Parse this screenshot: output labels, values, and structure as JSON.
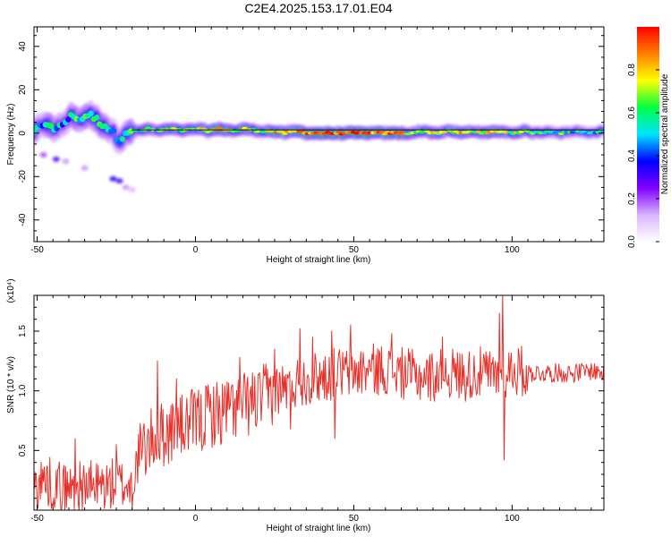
{
  "title": "C2E4.2025.153.17.01.E04",
  "chart_data": [
    {
      "type": "heatmap",
      "xlabel": "Height of straight line (km)",
      "ylabel": "Frequency (Hz)",
      "xlim": [
        -51,
        129
      ],
      "ylim": [
        -50,
        49
      ],
      "xticks": [
        "-50",
        "0",
        "50",
        "100"
      ],
      "yticks": [
        "40",
        "20",
        "0",
        "-20",
        "-40"
      ],
      "colorbar": {
        "label": "Normalized spectral amplitude",
        "range": [
          0,
          1
        ],
        "ticks": [
          "0.0",
          "0.2",
          "0.4",
          "0.6",
          "0.8"
        ],
        "colors": [
          "#ffffff",
          "#d9b3ff",
          "#8000ff",
          "#0000ff",
          "#00e5ff",
          "#00ff40",
          "#ffff00",
          "#ff8000",
          "#ff0000"
        ]
      },
      "reference_line_hz": 1.5,
      "ridge": [
        {
          "x": -50,
          "f": 4,
          "a": 0.35
        },
        {
          "x": -48,
          "f": 2,
          "a": 0.45
        },
        {
          "x": -46,
          "f": 5,
          "a": 0.55
        },
        {
          "x": -44,
          "f": 1,
          "a": 0.5
        },
        {
          "x": -42,
          "f": 4,
          "a": 0.45
        },
        {
          "x": -40,
          "f": 7,
          "a": 0.4
        },
        {
          "x": -38,
          "f": 8,
          "a": 0.6
        },
        {
          "x": -36,
          "f": 6,
          "a": 0.55
        },
        {
          "x": -34,
          "f": 9,
          "a": 0.5
        },
        {
          "x": -32,
          "f": 7,
          "a": 0.55
        },
        {
          "x": -30,
          "f": 5,
          "a": 0.6
        },
        {
          "x": -28,
          "f": 3,
          "a": 0.5
        },
        {
          "x": -26,
          "f": 0,
          "a": 0.45
        },
        {
          "x": -24,
          "f": -3,
          "a": 0.5
        },
        {
          "x": -22,
          "f": 1,
          "a": 0.55
        },
        {
          "x": -20,
          "f": 1,
          "a": 0.6
        },
        {
          "x": -18,
          "f": 1,
          "a": 0.6
        },
        {
          "x": -15,
          "f": 2,
          "a": 0.65
        },
        {
          "x": -12,
          "f": 1,
          "a": 0.6
        },
        {
          "x": -8,
          "f": 2,
          "a": 0.7
        },
        {
          "x": -4,
          "f": 1,
          "a": 0.75
        },
        {
          "x": 0,
          "f": 2,
          "a": 0.7
        },
        {
          "x": 4,
          "f": 1,
          "a": 0.75
        },
        {
          "x": 8,
          "f": 2,
          "a": 0.85
        },
        {
          "x": 12,
          "f": 1,
          "a": 0.7
        },
        {
          "x": 16,
          "f": 2,
          "a": 0.75
        },
        {
          "x": 20,
          "f": 1,
          "a": 0.7
        },
        {
          "x": 24,
          "f": 1,
          "a": 0.75
        },
        {
          "x": 28,
          "f": 0,
          "a": 0.85
        },
        {
          "x": 32,
          "f": 1,
          "a": 0.85
        },
        {
          "x": 36,
          "f": 0,
          "a": 0.9
        },
        {
          "x": 40,
          "f": 0,
          "a": 0.9
        },
        {
          "x": 44,
          "f": 0,
          "a": 0.95
        },
        {
          "x": 48,
          "f": 0,
          "a": 0.95
        },
        {
          "x": 52,
          "f": 0,
          "a": 0.95
        },
        {
          "x": 56,
          "f": 0,
          "a": 0.9
        },
        {
          "x": 60,
          "f": 0,
          "a": 0.9
        },
        {
          "x": 64,
          "f": 0,
          "a": 0.85
        },
        {
          "x": 68,
          "f": 0,
          "a": 0.75
        },
        {
          "x": 72,
          "f": 1,
          "a": 0.7
        },
        {
          "x": 76,
          "f": 0,
          "a": 0.75
        },
        {
          "x": 80,
          "f": 1,
          "a": 0.7
        },
        {
          "x": 84,
          "f": 0,
          "a": 0.75
        },
        {
          "x": 88,
          "f": 1,
          "a": 0.7
        },
        {
          "x": 92,
          "f": 0,
          "a": 0.75
        },
        {
          "x": 96,
          "f": 1,
          "a": 0.65
        },
        {
          "x": 100,
          "f": 0,
          "a": 0.7
        },
        {
          "x": 104,
          "f": 1,
          "a": 0.6
        },
        {
          "x": 108,
          "f": 0,
          "a": 0.65
        },
        {
          "x": 112,
          "f": 1,
          "a": 0.55
        },
        {
          "x": 116,
          "f": 0,
          "a": 0.6
        },
        {
          "x": 120,
          "f": 1,
          "a": 0.55
        },
        {
          "x": 124,
          "f": 0,
          "a": 0.6
        },
        {
          "x": 128,
          "f": 1,
          "a": 0.5
        }
      ],
      "isolated": [
        {
          "x": -48,
          "f": -10,
          "a": 0.2
        },
        {
          "x": -44,
          "f": -12,
          "a": 0.3
        },
        {
          "x": -41,
          "f": -13,
          "a": 0.15
        },
        {
          "x": -35,
          "f": -16,
          "a": 0.15
        },
        {
          "x": -26,
          "f": -21,
          "a": 0.35
        },
        {
          "x": -24,
          "f": -22,
          "a": 0.3
        },
        {
          "x": -22,
          "f": -25,
          "a": 0.15
        },
        {
          "x": -20,
          "f": -26,
          "a": 0.12
        }
      ]
    },
    {
      "type": "line",
      "xlabel": "Height of straight line (km)",
      "ylabel": "SNR (10 * v/v)",
      "y_multiplier": "(x10⁴)",
      "xlim": [
        -51,
        129
      ],
      "ylim": [
        0,
        1.8
      ],
      "xticks": [
        "-50",
        "0",
        "50",
        "100"
      ],
      "yticks": [
        "1.5",
        "1.0",
        "0.5"
      ],
      "color": "#e8302a",
      "control_points": [
        {
          "x": -51,
          "y": 0.2
        },
        {
          "x": -48,
          "y": 0.25
        },
        {
          "x": -45,
          "y": 0.22
        },
        {
          "x": -40,
          "y": 0.18
        },
        {
          "x": -35,
          "y": 0.2
        },
        {
          "x": -30,
          "y": 0.2
        },
        {
          "x": -25,
          "y": 0.22
        },
        {
          "x": -20,
          "y": 0.2
        },
        {
          "x": -18,
          "y": 0.45
        },
        {
          "x": -15,
          "y": 0.55
        },
        {
          "x": -12,
          "y": 0.62
        },
        {
          "x": -8,
          "y": 0.66
        },
        {
          "x": -4,
          "y": 0.7
        },
        {
          "x": 0,
          "y": 0.75
        },
        {
          "x": 5,
          "y": 0.8
        },
        {
          "x": 10,
          "y": 0.85
        },
        {
          "x": 15,
          "y": 0.88
        },
        {
          "x": 20,
          "y": 0.92
        },
        {
          "x": 25,
          "y": 1.0
        },
        {
          "x": 30,
          "y": 1.05
        },
        {
          "x": 35,
          "y": 1.1
        },
        {
          "x": 40,
          "y": 1.12
        },
        {
          "x": 45,
          "y": 1.15
        },
        {
          "x": 50,
          "y": 1.15
        },
        {
          "x": 55,
          "y": 1.18
        },
        {
          "x": 60,
          "y": 1.18
        },
        {
          "x": 65,
          "y": 1.15
        },
        {
          "x": 70,
          "y": 1.12
        },
        {
          "x": 75,
          "y": 1.12
        },
        {
          "x": 80,
          "y": 1.15
        },
        {
          "x": 85,
          "y": 1.13
        },
        {
          "x": 90,
          "y": 1.15
        },
        {
          "x": 95,
          "y": 1.12
        },
        {
          "x": 100,
          "y": 1.18
        },
        {
          "x": 105,
          "y": 1.15
        },
        {
          "x": 110,
          "y": 1.15
        },
        {
          "x": 115,
          "y": 1.15
        },
        {
          "x": 120,
          "y": 1.15
        },
        {
          "x": 125,
          "y": 1.17
        },
        {
          "x": 129,
          "y": 1.15
        }
      ],
      "spikes": [
        {
          "x": -38,
          "y": 0.6
        },
        {
          "x": -25,
          "y": 0.55
        },
        {
          "x": -12,
          "y": 1.25
        },
        {
          "x": -6,
          "y": 1.1
        },
        {
          "x": 4,
          "y": 1.05
        },
        {
          "x": 14,
          "y": 1.28
        },
        {
          "x": 25,
          "y": 1.35
        },
        {
          "x": 33,
          "y": 1.52
        },
        {
          "x": 37,
          "y": 1.45
        },
        {
          "x": 43,
          "y": 1.5
        },
        {
          "x": 49,
          "y": 1.55
        },
        {
          "x": 62,
          "y": 1.48
        },
        {
          "x": 78,
          "y": 1.45
        },
        {
          "x": 96,
          "y": 1.65
        },
        {
          "x": 97,
          "y": 1.8
        },
        {
          "x": 97.5,
          "y": 0.42
        },
        {
          "x": 44,
          "y": 0.6
        },
        {
          "x": 30,
          "y": 0.68
        },
        {
          "x": 2,
          "y": 0.5
        },
        {
          "x": 8,
          "y": 0.55
        }
      ]
    }
  ]
}
